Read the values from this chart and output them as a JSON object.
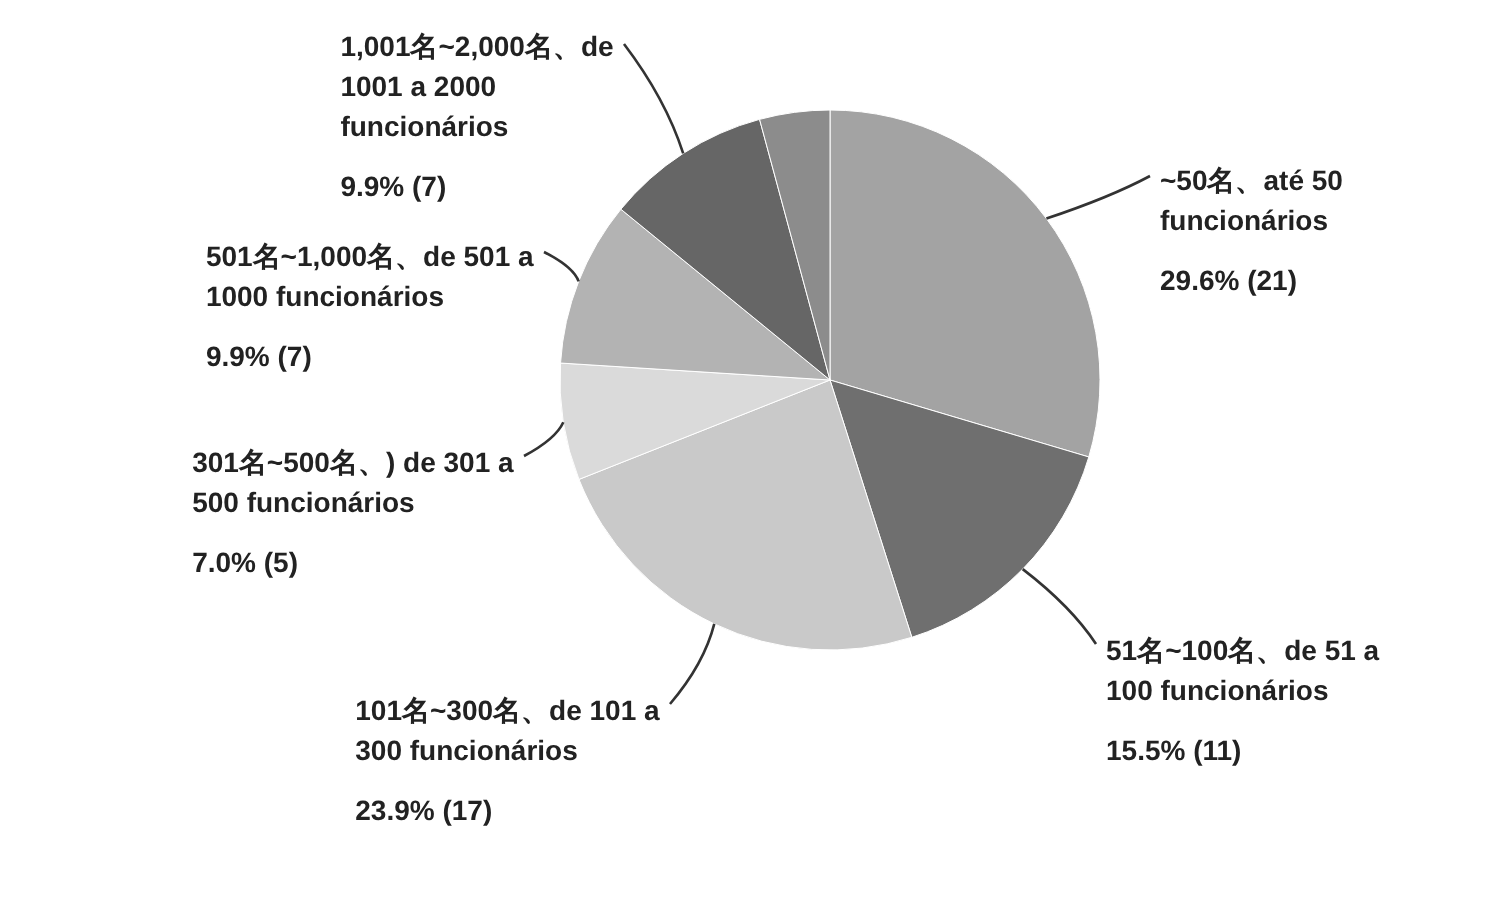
{
  "chart_data": {
    "type": "pie",
    "categories": [
      "~50名、até 50 funcionários",
      "51名~100名、de 51 a 100 funcionários",
      "101名~300名、de 101 a 300 funcionários",
      "301名~500名、) de 301 a 500 funcionários",
      "501名~1,000名、de 501 a 1000 funcionários",
      "1,001名~2,000名、de 1001 a 2000 funcionários",
      null
    ],
    "values": [
      29.6,
      15.5,
      23.9,
      7.0,
      9.9,
      9.9,
      4.2
    ],
    "value_labels": [
      "29.6% (21)",
      "15.5% (11)",
      "23.9% (17)",
      "7.0% (5)",
      "9.9% (7)",
      "9.9% (7)",
      null
    ],
    "colors": [
      "#a3a3a3",
      "#6f6f6f",
      "#c9c9c9",
      "#dadada",
      "#b3b3b3",
      "#666666",
      "#8c8c8c"
    ]
  }
}
